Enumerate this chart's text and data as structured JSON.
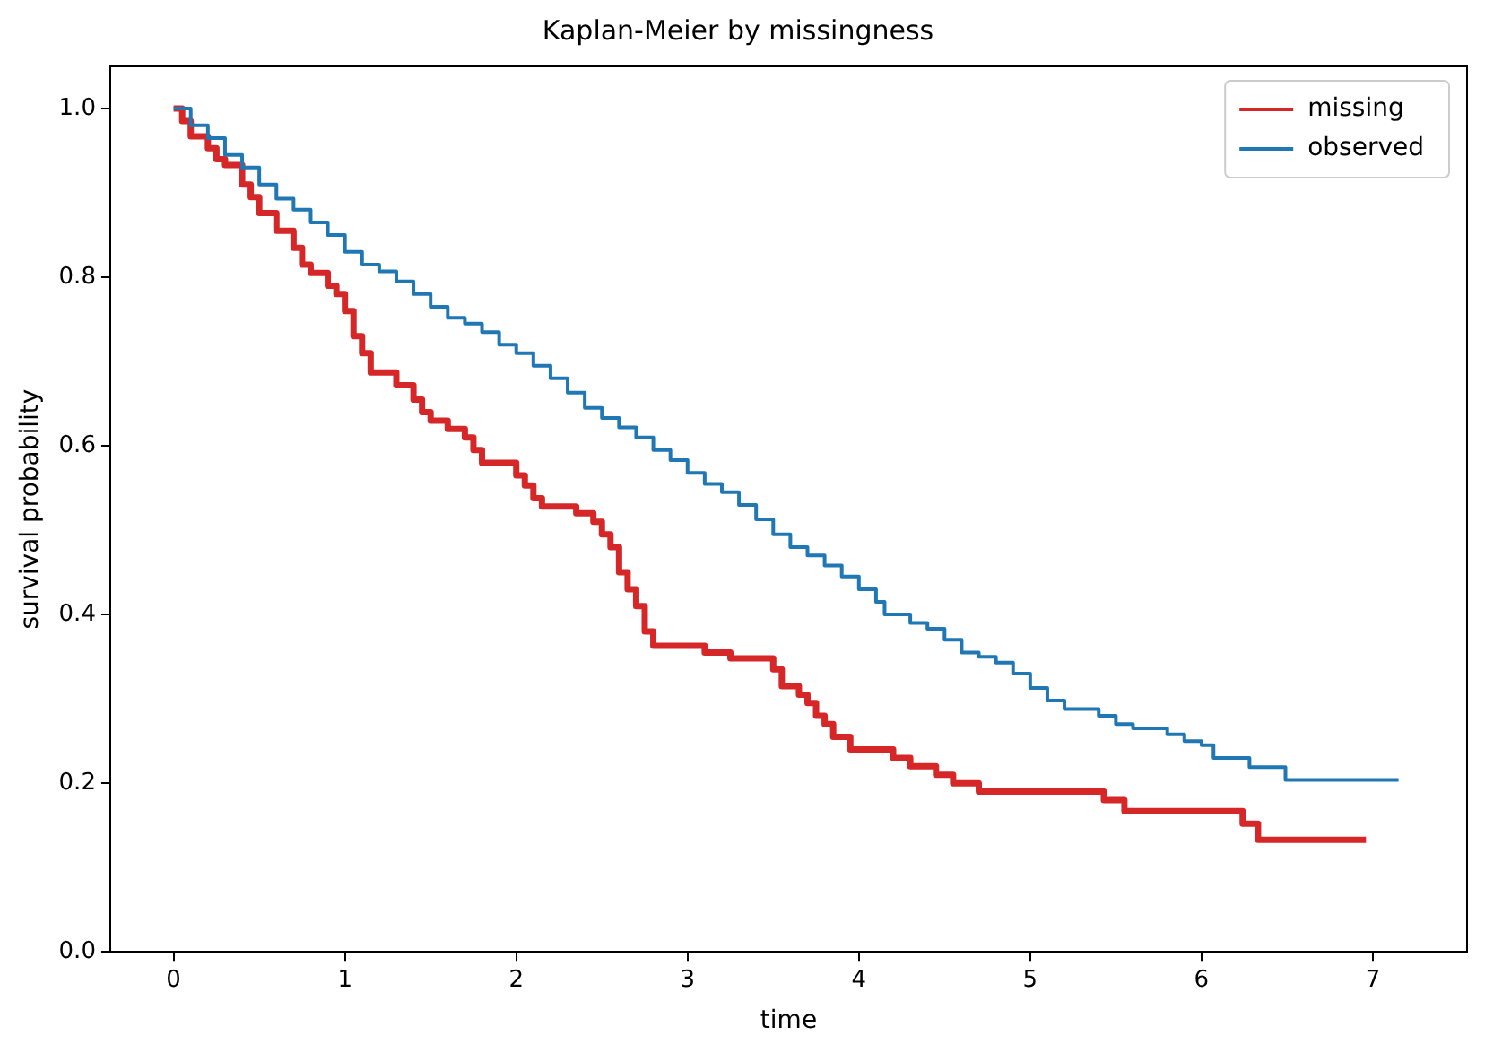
{
  "chart_data": {
    "type": "step",
    "title": "Kaplan-Meier by missingness",
    "xlabel": "time",
    "ylabel": "survival probability",
    "xlim": [
      -0.37,
      7.55
    ],
    "ylim": [
      0,
      1.05
    ],
    "xticks": [
      0,
      1,
      2,
      3,
      4,
      5,
      6,
      7
    ],
    "yticks": [
      {
        "value": 0,
        "label": "0.0"
      },
      {
        "value": 0.2,
        "label": "0.2"
      },
      {
        "value": 0.4,
        "label": "0.4"
      },
      {
        "value": 0.6,
        "label": "0.6"
      },
      {
        "value": 0.8,
        "label": "0.8"
      },
      {
        "value": 1,
        "label": "1.0"
      }
    ],
    "grid": false,
    "legend": "top right",
    "marker": "none",
    "line_style": "solid",
    "series": [
      {
        "name": "missing",
        "color": "#d62728",
        "x": [
          0,
          0.05,
          0.1,
          0.2,
          0.25,
          0.3,
          0.4,
          0.45,
          0.5,
          0.6,
          0.7,
          0.75,
          0.8,
          0.9,
          0.95,
          1.0,
          1.05,
          1.1,
          1.15,
          1.3,
          1.4,
          1.45,
          1.5,
          1.6,
          1.7,
          1.75,
          1.8,
          2.0,
          2.05,
          2.1,
          2.15,
          2.35,
          2.45,
          2.5,
          2.55,
          2.6,
          2.65,
          2.7,
          2.75,
          2.8,
          3.1,
          3.25,
          3.5,
          3.55,
          3.65,
          3.7,
          3.75,
          3.8,
          3.85,
          3.95,
          4.2,
          4.3,
          4.45,
          4.55,
          4.7,
          5.43,
          5.55,
          6.24,
          6.33,
          6.96
        ],
        "values": [
          1.0,
          0.985,
          0.967,
          0.953,
          0.94,
          0.933,
          0.91,
          0.895,
          0.876,
          0.855,
          0.835,
          0.815,
          0.805,
          0.79,
          0.78,
          0.76,
          0.73,
          0.71,
          0.687,
          0.672,
          0.655,
          0.64,
          0.63,
          0.62,
          0.61,
          0.595,
          0.58,
          0.565,
          0.553,
          0.538,
          0.528,
          0.52,
          0.51,
          0.495,
          0.48,
          0.45,
          0.43,
          0.41,
          0.38,
          0.363,
          0.355,
          0.348,
          0.335,
          0.315,
          0.305,
          0.295,
          0.28,
          0.27,
          0.255,
          0.24,
          0.23,
          0.22,
          0.21,
          0.2,
          0.19,
          0.18,
          0.167,
          0.152,
          0.133,
          0.133
        ]
      },
      {
        "name": "observed",
        "color": "#1f77b4",
        "x": [
          0,
          0.1,
          0.2,
          0.3,
          0.4,
          0.5,
          0.6,
          0.7,
          0.8,
          0.9,
          1.0,
          1.1,
          1.2,
          1.3,
          1.4,
          1.5,
          1.6,
          1.7,
          1.8,
          1.9,
          2.0,
          2.1,
          2.2,
          2.3,
          2.4,
          2.5,
          2.6,
          2.7,
          2.8,
          2.9,
          3.0,
          3.1,
          3.2,
          3.3,
          3.4,
          3.5,
          3.6,
          3.7,
          3.8,
          3.9,
          4.0,
          4.1,
          4.15,
          4.3,
          4.4,
          4.5,
          4.6,
          4.7,
          4.8,
          4.9,
          5.0,
          5.1,
          5.2,
          5.4,
          5.5,
          5.6,
          5.8,
          5.9,
          6.0,
          6.07,
          6.28,
          6.49,
          7.15
        ],
        "values": [
          1.0,
          0.98,
          0.965,
          0.945,
          0.93,
          0.91,
          0.893,
          0.88,
          0.865,
          0.85,
          0.83,
          0.815,
          0.807,
          0.795,
          0.78,
          0.765,
          0.752,
          0.745,
          0.735,
          0.72,
          0.71,
          0.695,
          0.68,
          0.663,
          0.645,
          0.633,
          0.622,
          0.61,
          0.595,
          0.583,
          0.568,
          0.555,
          0.545,
          0.53,
          0.513,
          0.495,
          0.48,
          0.47,
          0.458,
          0.445,
          0.43,
          0.415,
          0.4,
          0.39,
          0.383,
          0.37,
          0.355,
          0.35,
          0.343,
          0.33,
          0.313,
          0.298,
          0.288,
          0.28,
          0.27,
          0.265,
          0.258,
          0.25,
          0.245,
          0.23,
          0.219,
          0.204,
          0.204
        ]
      }
    ]
  }
}
